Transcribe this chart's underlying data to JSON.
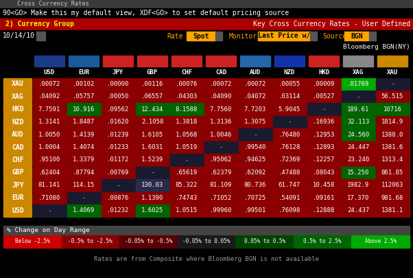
{
  "title_bar": "Cross Currency Rates",
  "top_line": "90<GO> Make this my default view, XDF<GO> to set default pricing source",
  "menu_bar": "2) Currency Group",
  "menu_right": "Key Cross Currency Rates - User Defined",
  "date": "10/14/10",
  "rate_label": "Rate",
  "rate_val": "Spot",
  "monitor_label": "Monitor",
  "monitor_val": "Last Price w/",
  "source_label": "Source",
  "source_val": "BGN",
  "bloomberg_line": "Bloomberg BGN(NY)",
  "footer": "Rates are from Composite where Bloomberg BGN is not available",
  "columns": [
    "USD",
    "EUR",
    "JPY",
    "GBP",
    "CHF",
    "CAD",
    "AUD",
    "NZD",
    "HKD",
    "XAG",
    "XAU"
  ],
  "rows": [
    "XAU",
    "XAG",
    "HKD",
    "NZD",
    "AUD",
    "CAD",
    "CHF",
    "GBP",
    "JPY",
    "EUR",
    "USD"
  ],
  "table_data": [
    [
      ".00072",
      ".00102",
      ".00000",
      ".00116",
      ".00076",
      ".00072",
      ".00072",
      ".00055",
      ".00009",
      ".01769",
      "-"
    ],
    [
      ".04092",
      ".05757",
      ".00050",
      ".06557",
      ".04303",
      ".04090",
      ".04072",
      ".03114",
      ".00527",
      "-",
      "56.515"
    ],
    [
      "7.7591",
      "10.916",
      ".09562",
      "12.434",
      "8.1588",
      "7.7560",
      "7.7203",
      "5.9045",
      "-",
      "189.61",
      "10716"
    ],
    [
      "1.3141",
      "1.8487",
      ".01620",
      "2.1058",
      "1.3818",
      "1.3136",
      "1.3075",
      "-",
      ".16936",
      "32.113",
      "1814.9"
    ],
    [
      "1.0050",
      "1.4139",
      ".01239",
      "1.6105",
      "1.0568",
      "1.0046",
      "-",
      ".76480",
      ".12953",
      "24.560",
      "1388.0"
    ],
    [
      "1.0004",
      "1.4074",
      ".01233",
      "1.6031",
      "1.0519",
      "-",
      ".99540",
      ".76128",
      ".12893",
      "24.447",
      "1381.6"
    ],
    [
      ".95100",
      "1.3379",
      ".01172",
      "1.5239",
      "-",
      ".95062",
      ".94625",
      ".72369",
      ".12257",
      "23.240",
      "1313.4"
    ],
    [
      ".62404",
      ".87794",
      ".00769",
      "-",
      ".65619",
      ".62379",
      ".62092",
      ".47488",
      ".08043",
      "15.250",
      "861.85"
    ],
    [
      "81.141",
      "114.15",
      "-",
      "130.03",
      "85.322",
      "81.109",
      "80.736",
      "61.747",
      "10.458",
      "1982.9",
      "112063"
    ],
    [
      ".71080",
      "-",
      ".00876",
      "1.1390",
      ".74743",
      ".71052",
      ".70725",
      ".54091",
      ".09161",
      "17.370",
      "981.68"
    ],
    [
      "-",
      "1.4069",
      ".01232",
      "1.6025",
      "1.0515",
      ".99960",
      ".99501",
      ".76098",
      ".12888",
      "24.437",
      "1381.1"
    ]
  ],
  "cell_colors": [
    [
      "#8b0000",
      "#8b0000",
      "#8b0000",
      "#8b0000",
      "#8b0000",
      "#8b0000",
      "#8b0000",
      "#8b0000",
      "#8b0000",
      "#00aa00",
      "diag"
    ],
    [
      "#8b0000",
      "#8b0000",
      "#8b0000",
      "#8b0000",
      "#8b0000",
      "#8b0000",
      "#8b0000",
      "#8b0000",
      "#8b0000",
      "diag",
      "#8b0000"
    ],
    [
      "#8b0000",
      "#006400",
      "#8b0000",
      "#006400",
      "#006400",
      "#8b0000",
      "#8b0000",
      "#8b0000",
      "diag",
      "#006400",
      "#006400"
    ],
    [
      "#8b0000",
      "#8b0000",
      "#8b0000",
      "#8b0000",
      "#8b0000",
      "#8b0000",
      "#8b0000",
      "diag",
      "#8b0000",
      "#006400",
      "#8b0000"
    ],
    [
      "#8b0000",
      "#8b0000",
      "#8b0000",
      "#8b0000",
      "#8b0000",
      "#8b0000",
      "diag",
      "#8b0000",
      "#8b0000",
      "#006400",
      "#8b0000"
    ],
    [
      "#8b0000",
      "#8b0000",
      "#8b0000",
      "#8b0000",
      "#8b0000",
      "diag",
      "#8b0000",
      "#8b0000",
      "#8b0000",
      "#8b0000",
      "#8b0000"
    ],
    [
      "#8b0000",
      "#8b0000",
      "#8b0000",
      "#8b0000",
      "diag",
      "#8b0000",
      "#8b0000",
      "#8b0000",
      "#8b0000",
      "#8b0000",
      "#8b0000"
    ],
    [
      "#8b0000",
      "#8b0000",
      "#8b0000",
      "diag",
      "#8b0000",
      "#8b0000",
      "#8b0000",
      "#8b0000",
      "#8b0000",
      "#006400",
      "#8b0000"
    ],
    [
      "#8b0000",
      "#8b0000",
      "diag",
      "#2a2a4a",
      "#8b0000",
      "#8b0000",
      "#8b0000",
      "#8b0000",
      "#8b0000",
      "#8b0000",
      "#8b0000"
    ],
    [
      "#8b0000",
      "diag",
      "#8b0000",
      "#8b0000",
      "#8b0000",
      "#8b0000",
      "#8b0000",
      "#8b0000",
      "#8b0000",
      "#8b0000",
      "#8b0000"
    ],
    [
      "diag",
      "#006400",
      "#8b0000",
      "#006400",
      "#8b0000",
      "#8b0000",
      "#8b0000",
      "#8b0000",
      "#8b0000",
      "#8b0000",
      "#8b0000"
    ]
  ],
  "bg_color": "#000000",
  "title_bar_bg": "#3a3a3a",
  "menu_bar_bg": "#aa0000",
  "date_bar_bg": "#000000",
  "row_label_bg": "#cc8800",
  "diag_color": "#1a1a2e",
  "legend_header_bg": "#444444",
  "legend_ranges": [
    "Below -2.5%",
    "-0.5% to -2.5%",
    "-0.05% to -0.5%",
    "-0.05% to 0.05%",
    "0.05% to 0.5%",
    "0.5% to 2.5%",
    "Above 2.5%"
  ],
  "legend_colors": [
    "#cc0000",
    "#8b0000",
    "#5a0000",
    "#1a1a1a",
    "#004400",
    "#006400",
    "#00aa00"
  ],
  "flag_colors": {
    "USD": "#1a3a8a",
    "EUR": "#1a5a9a",
    "JPY": "#cc2222",
    "GBP": "#cc2222",
    "CHF": "#cc2222",
    "CAD": "#cc2222",
    "AUD": "#2266aa",
    "NZD": "#1133aa",
    "HKD": "#cc2222",
    "XAG": "#888888",
    "XAU": "#cc8800"
  }
}
